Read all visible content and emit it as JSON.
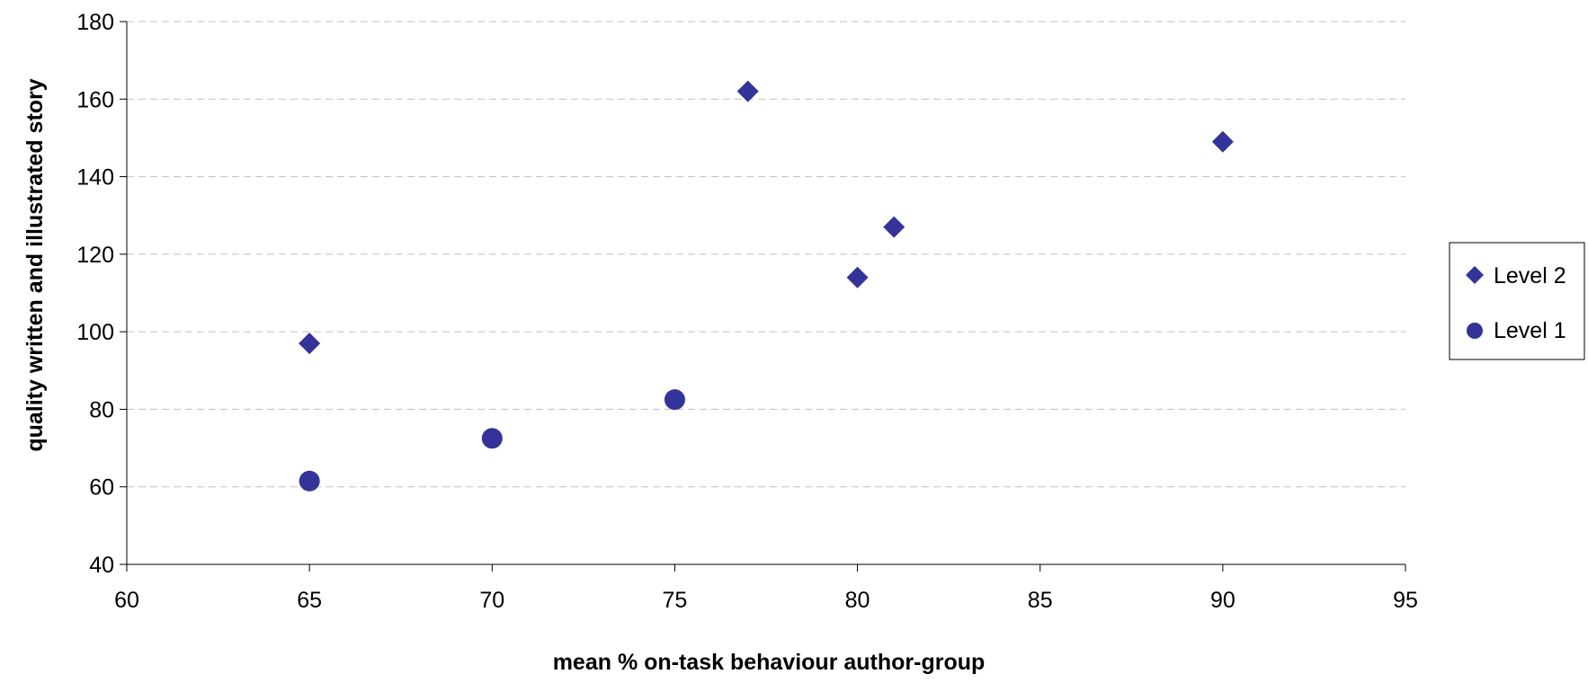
{
  "chart_data": {
    "type": "scatter",
    "title": "",
    "xlabel": "mean % on-task behaviour author-group",
    "ylabel": "quality written and illustrated story",
    "xlim": [
      60,
      95
    ],
    "ylim": [
      40,
      180
    ],
    "xticks": [
      60,
      65,
      70,
      75,
      80,
      85,
      90,
      95
    ],
    "yticks": [
      40,
      60,
      80,
      100,
      120,
      140,
      160,
      180
    ],
    "grid": "horizontal dashed",
    "legend_position": "right",
    "series": [
      {
        "name": "Level 2",
        "marker": "diamond",
        "color": "#333399",
        "points": [
          {
            "x": 65,
            "y": 97
          },
          {
            "x": 77,
            "y": 162
          },
          {
            "x": 80,
            "y": 114
          },
          {
            "x": 81,
            "y": 127
          },
          {
            "x": 90,
            "y": 149
          }
        ]
      },
      {
        "name": "Level 1",
        "marker": "circle",
        "color": "#333399",
        "points": [
          {
            "x": 65,
            "y": 61.5
          },
          {
            "x": 70,
            "y": 72.5
          },
          {
            "x": 75,
            "y": 82.5
          }
        ]
      }
    ]
  }
}
